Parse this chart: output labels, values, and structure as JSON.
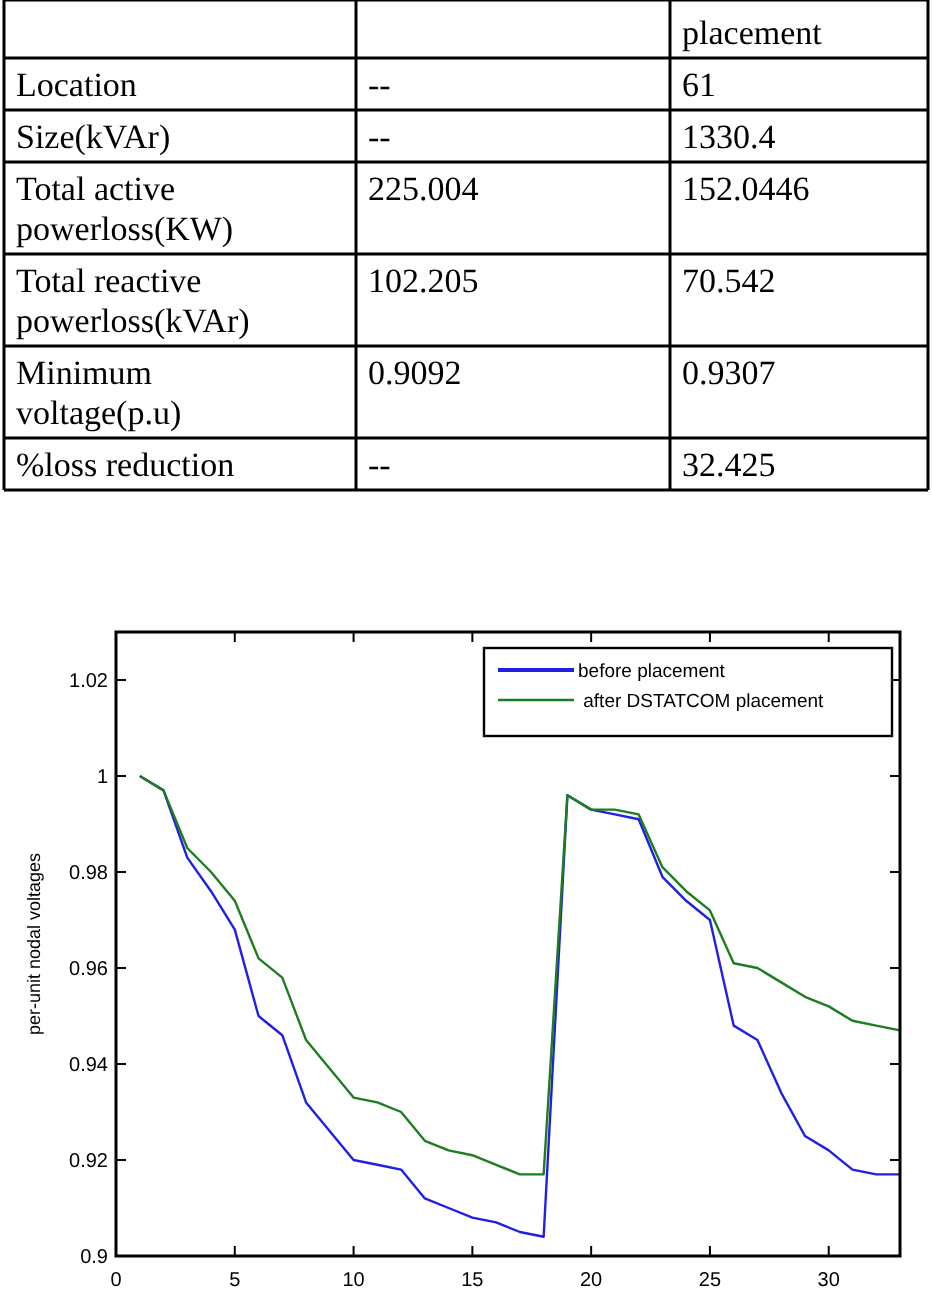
{
  "chart_data": [
    {
      "type": "other",
      "cell_labels": [
        [
          null,
          null,
          "placement"
        ],
        [
          "Location",
          "--",
          "61"
        ],
        [
          "Size(kVAr)",
          "--",
          "1330.4"
        ],
        [
          "Total active powerloss(KW)",
          "225.004",
          "152.0446"
        ],
        [
          "Total reactive powerloss(kVAr)",
          "102.205",
          "70.542"
        ],
        [
          "Minimum voltage(p.u)",
          "0.9092",
          "0.9307"
        ],
        [
          "%loss reduction",
          "--",
          "32.425"
        ]
      ]
    },
    {
      "type": "line",
      "ylabel": "per-unit nodal voltages",
      "x": [
        1,
        2,
        3,
        4,
        5,
        6,
        7,
        8,
        9,
        10,
        11,
        12,
        13,
        14,
        15,
        16,
        17,
        18,
        19,
        20,
        21,
        22,
        23,
        24,
        25,
        26,
        27,
        28,
        29,
        30,
        31,
        32,
        33
      ],
      "xlim": [
        0,
        33
      ],
      "xticks": [
        0,
        5,
        10,
        15,
        20,
        25,
        30
      ],
      "ylim": [
        0.9,
        1.03
      ],
      "yticks": [
        0.9,
        0.92,
        0.94,
        0.96,
        0.98,
        {
          "value": 1.0,
          "label": "1"
        },
        1.02
      ],
      "legend": "top right",
      "grid": false,
      "marker": "none",
      "line_style": "solid",
      "series": [
        {
          "name": "before placement",
          "color": "#1f1fe6",
          "values": [
            1.0,
            0.997,
            0.983,
            0.976,
            0.968,
            0.95,
            0.946,
            0.932,
            0.926,
            0.92,
            0.919,
            0.918,
            0.912,
            0.91,
            0.908,
            0.907,
            0.905,
            0.904,
            0.996,
            0.993,
            0.992,
            0.991,
            0.979,
            0.974,
            0.97,
            0.948,
            0.945,
            0.934,
            0.925,
            0.922,
            0.918,
            0.917,
            0.917
          ]
        },
        {
          "name": " after DSTATCOM placement",
          "color": "#1e7d1e",
          "values": [
            1.0,
            0.997,
            0.985,
            0.98,
            0.974,
            0.962,
            0.958,
            0.945,
            0.939,
            0.933,
            0.932,
            0.93,
            0.924,
            0.922,
            0.921,
            0.919,
            0.917,
            0.917,
            0.996,
            0.993,
            0.993,
            0.992,
            0.981,
            0.976,
            0.972,
            0.961,
            0.96,
            0.957,
            0.954,
            0.952,
            0.949,
            0.948,
            0.947
          ]
        }
      ]
    }
  ]
}
